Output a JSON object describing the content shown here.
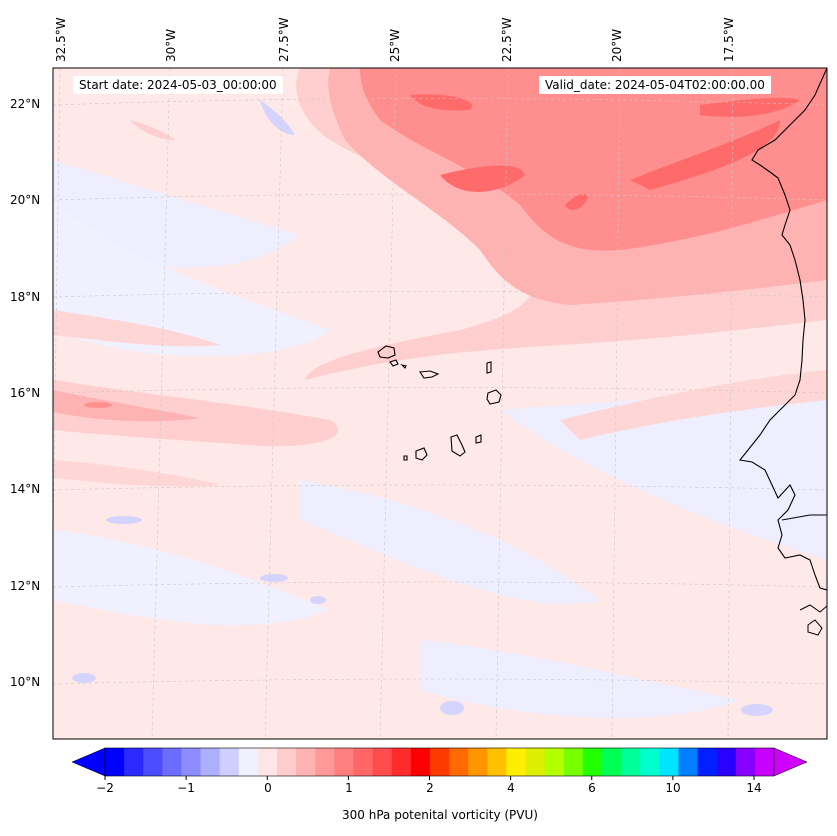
{
  "map": {
    "start_date": "Start date: 2024-05-03_00:00:00",
    "valid_date": "Valid_date: 2024-05-04T02:00:00.00",
    "lon_labels": [
      "32.5°W",
      "30°W",
      "27.5°W",
      "25°W",
      "22.5°W",
      "20°W",
      "17.5°W"
    ],
    "lat_labels": [
      "22°N",
      "20°N",
      "18°N",
      "16°N",
      "14°N",
      "12°N",
      "10°N"
    ],
    "variable": "300 hPa potenital vorticity (PVU)",
    "colorbar": {
      "tick_labels": [
        "−2",
        "−1",
        "0",
        "1",
        "2",
        "4",
        "6",
        "10",
        "14"
      ],
      "colors": [
        "#0000ff",
        "#2a2aff",
        "#4b4bff",
        "#6c6cff",
        "#8d8dff",
        "#aeaeff",
        "#cfcfff",
        "#f0f0ff",
        "#ffe6e6",
        "#ffcccc",
        "#ffb3b3",
        "#ff9999",
        "#ff7f7f",
        "#ff6666",
        "#ff4c4c",
        "#ff2b2b",
        "#ff0000",
        "#ff3a00",
        "#ff6a00",
        "#ff9500",
        "#ffc000",
        "#ffee00",
        "#ddee00",
        "#b3ff00",
        "#77ff00",
        "#22ff00",
        "#00ff55",
        "#00ff99",
        "#00ffcc",
        "#00e5ff",
        "#007fff",
        "#0020ff",
        "#2a00ff",
        "#8800ff",
        "#c800ff"
      ],
      "under_color": "#0000ff",
      "over_color": "#d000ff"
    },
    "colors": {
      "background_field": "#ffe8e8",
      "light_blue": "#eeeeff",
      "medium_blue": "#d4d4ff",
      "light_pink": "#ffcfcf",
      "pink": "#ffb2b2",
      "red": "#ff8f8f",
      "deep_red": "#ff6a6a",
      "coast": "#000000"
    }
  }
}
